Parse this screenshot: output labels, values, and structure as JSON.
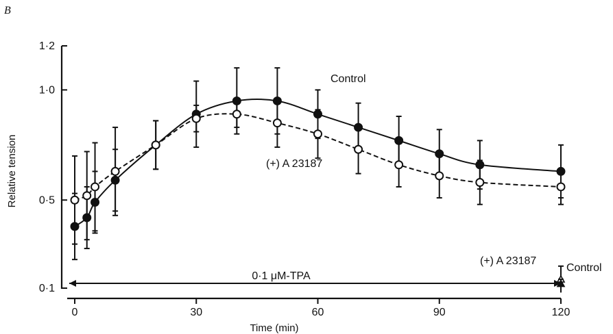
{
  "chart_data": {
    "type": "line",
    "panel_label": "B",
    "xlabel": "Time (min)",
    "ylabel": "Relative tension",
    "xlim": [
      0,
      120
    ],
    "ylim": [
      0.1,
      1.2
    ],
    "x_ticks": [
      0,
      30,
      60,
      90,
      120
    ],
    "x_tick_labels": [
      "0",
      "30",
      "60",
      "90",
      "120"
    ],
    "y_ticks": [
      0.1,
      0.5,
      1.0,
      1.2
    ],
    "y_tick_labels": [
      "0·1",
      "0·5",
      "1·0",
      "1·2"
    ],
    "grid": false,
    "series": [
      {
        "name": "Control",
        "marker": "filled-circle",
        "line": "solid",
        "x": [
          0,
          3,
          5,
          10,
          20,
          30,
          40,
          50,
          60,
          70,
          80,
          90,
          100,
          120
        ],
        "y": [
          0.38,
          0.42,
          0.49,
          0.59,
          0.75,
          0.89,
          0.95,
          0.95,
          0.89,
          0.83,
          0.77,
          0.71,
          0.66,
          0.63
        ],
        "err": [
          0.15,
          0.14,
          0.14,
          0.14,
          0.11,
          0.15,
          0.15,
          0.15,
          0.11,
          0.11,
          0.11,
          0.11,
          0.11,
          0.12
        ]
      },
      {
        "name": "(+) A 23187",
        "marker": "open-circle",
        "line": "dashed",
        "x": [
          0,
          3,
          5,
          10,
          20,
          30,
          40,
          50,
          60,
          70,
          80,
          90,
          100,
          120
        ],
        "y": [
          0.5,
          0.52,
          0.56,
          0.63,
          0.75,
          0.87,
          0.89,
          0.85,
          0.8,
          0.73,
          0.66,
          0.61,
          0.58,
          0.56
        ],
        "err": [
          0.2,
          0.2,
          0.2,
          0.2,
          0.11,
          0.06,
          0.06,
          0.11,
          0.11,
          0.11,
          0.1,
          0.1,
          0.1,
          0.08
        ]
      }
    ],
    "end_points": [
      {
        "series": "(+) A 23187",
        "marker": "open-triangle",
        "x": 120,
        "y": 0.14,
        "err": 0.06
      },
      {
        "series": "Control",
        "marker": "filled-triangle",
        "x": 120,
        "y": 0.12,
        "err": 0.02
      }
    ],
    "annotations": {
      "control_label": "Control",
      "a23187_label": "(+) A 23187",
      "a23187_end_label": "(+) A 23187",
      "control_end_label": "Control",
      "tpa_label": "0·1 μM-TPA",
      "tpa_range": [
        0,
        120
      ]
    }
  }
}
